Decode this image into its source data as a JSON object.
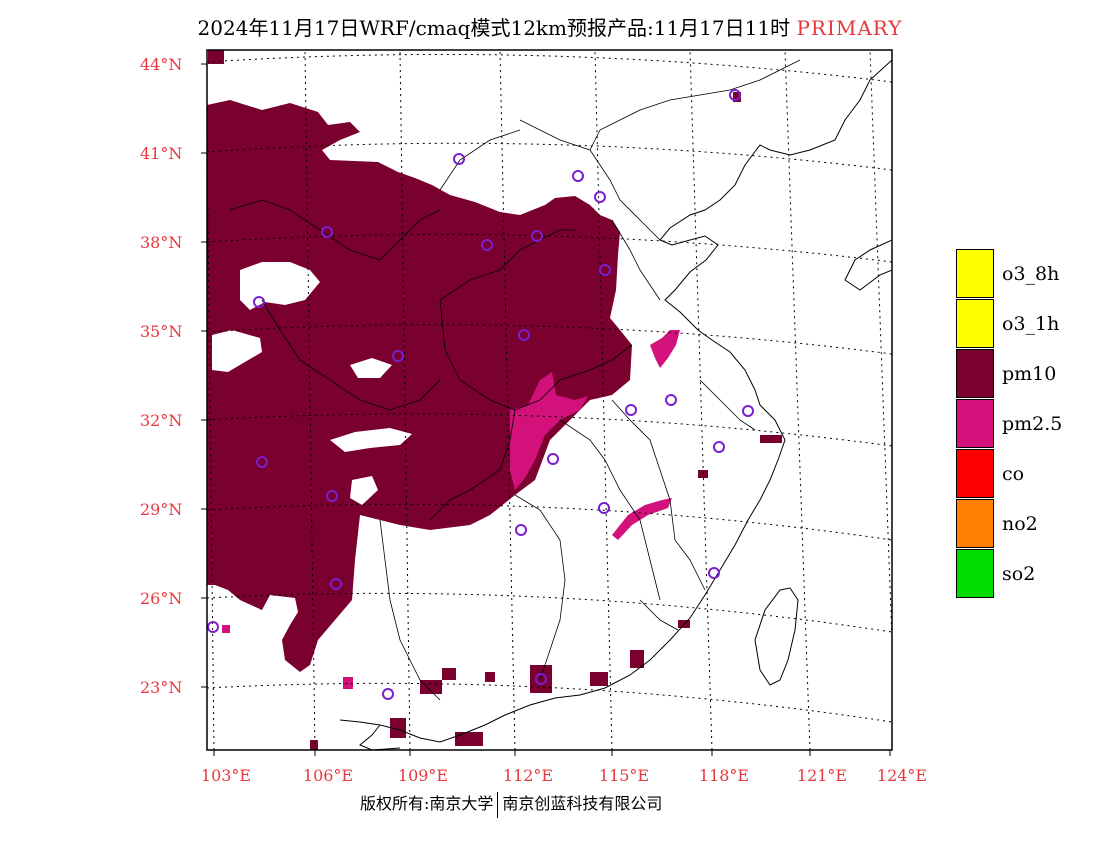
{
  "title": {
    "main": "2024年11月17日WRF/cmaq模式12km预报产品:11月17日11时",
    "tag": "PRIMARY",
    "tag_color": "#e8373c"
  },
  "axes": {
    "lat_labels": [
      "44°N",
      "41°N",
      "38°N",
      "35°N",
      "32°N",
      "29°N",
      "26°N",
      "23°N"
    ],
    "lon_labels": [
      "103°E",
      "106°E",
      "109°E",
      "112°E",
      "115°E",
      "118°E",
      "121°E",
      "124°E"
    ],
    "label_color": "#e8373c"
  },
  "legend": [
    {
      "label": "o3_8h",
      "color": "#ffff00"
    },
    {
      "label": "o3_1h",
      "color": "#ffff00"
    },
    {
      "label": "pm10",
      "color": "#7a0030"
    },
    {
      "label": "pm2.5",
      "color": "#d2127a"
    },
    {
      "label": "co",
      "color": "#ff0000"
    },
    {
      "label": "no2",
      "color": "#ff7f00"
    },
    {
      "label": "so2",
      "color": "#00dd00"
    }
  ],
  "colors": {
    "pm10": "#7a0030",
    "pm25": "#d2127a",
    "station": "#7a1fd0",
    "border": "#000000"
  },
  "footer": {
    "left": "版权所有:南京大学",
    "right": "南京创蓝科技有限公司"
  }
}
